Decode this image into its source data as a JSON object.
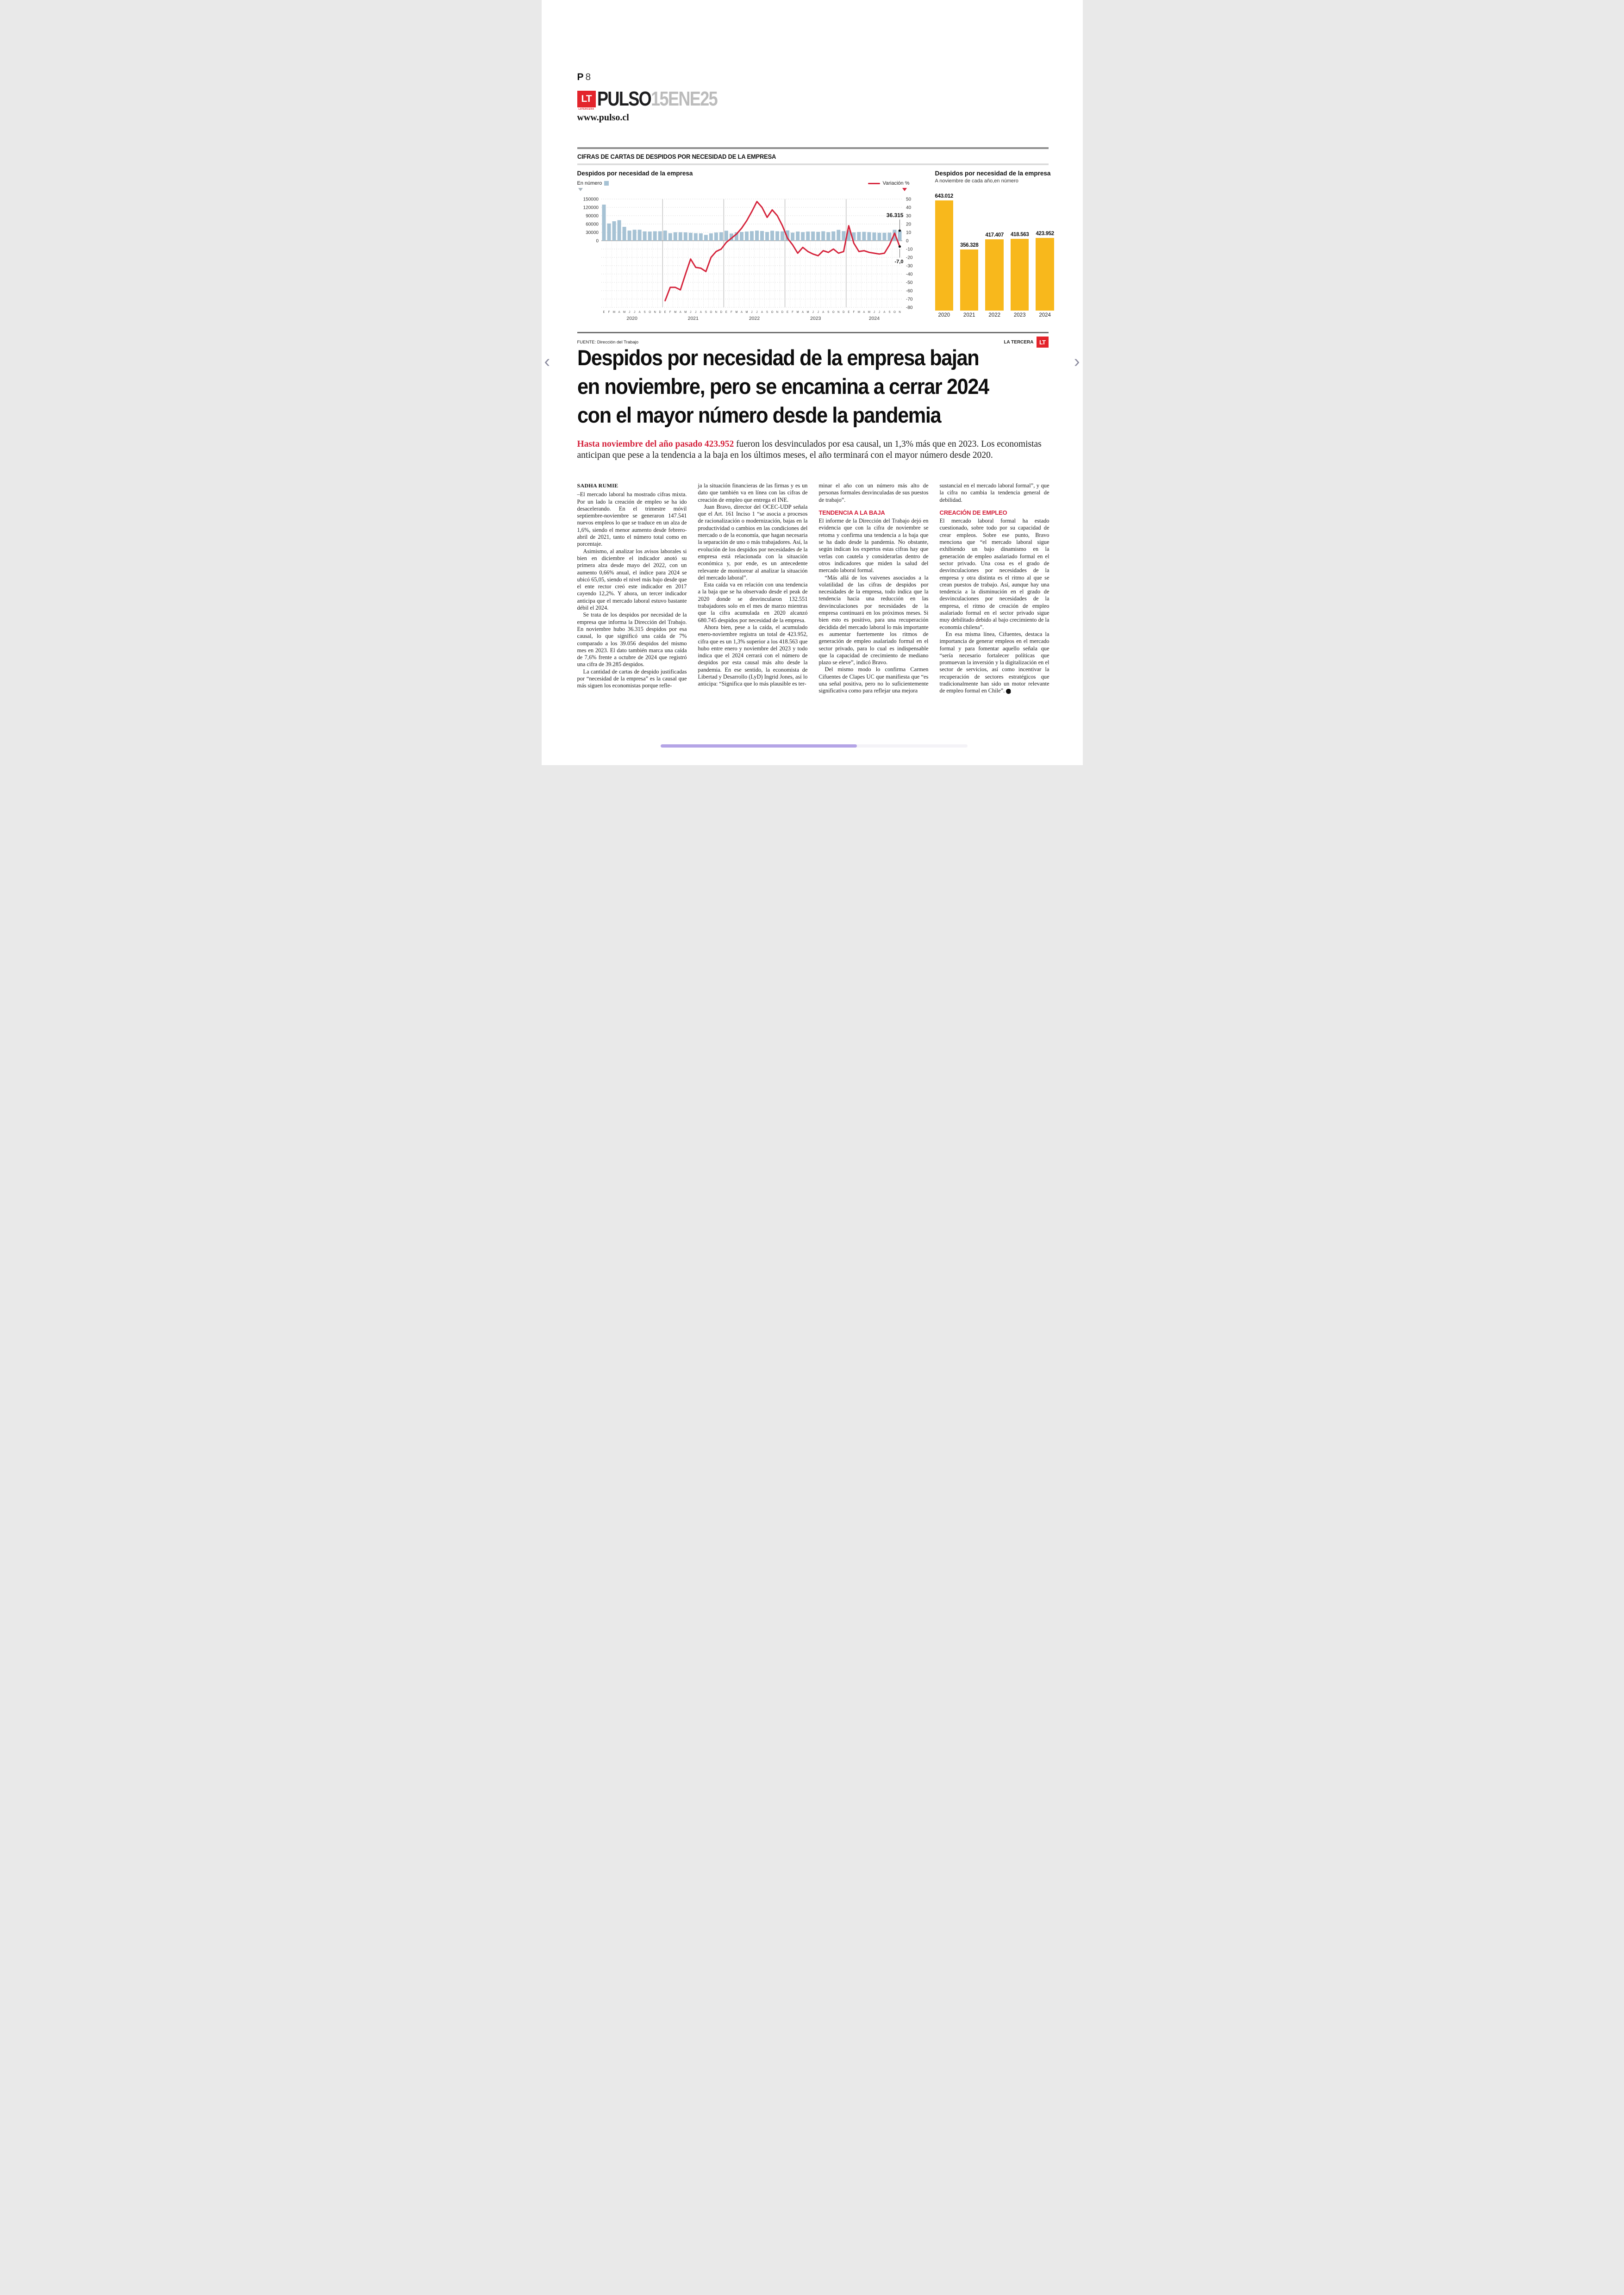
{
  "page": {
    "number_label": "P",
    "number": "8"
  },
  "brand": {
    "lt": "LT",
    "lt_sub": "LATERCERA",
    "name": "PULSO",
    "date": "15ENE25",
    "url": "www.pulso.cl"
  },
  "nav": {
    "prev": "‹",
    "next": "›"
  },
  "chart_section": {
    "kicker": "CIFRAS DE CARTAS DE DESPIDOS POR NECESIDAD DE LA EMPRESA",
    "source": "FUENTE: Dirección del Trabajo",
    "credit": "LA TERCERA",
    "credit_logo": "LT"
  },
  "colors": {
    "bar_blue": "#a6c2d4",
    "line_red": "#d5243c",
    "bar_yellow": "#f8b81c",
    "accent_red": "#d4213a",
    "logo_red": "#e3242b"
  },
  "chart_data": [
    {
      "type": "bar+line",
      "title": "Despidos por necesidad de la empresa",
      "legend_bars": "En número",
      "legend_line": "Variación %",
      "ylabel_left_ticks": [
        150000,
        120000,
        90000,
        60000,
        30000,
        0
      ],
      "ylabel_right_ticks": [
        50,
        40,
        30,
        20,
        10,
        0,
        -10,
        -20,
        -30,
        -40,
        -50,
        -60,
        -70,
        -80
      ],
      "month_letters": [
        "E",
        "F",
        "M",
        "A",
        "M",
        "J",
        "J",
        "A",
        "S",
        "O",
        "N",
        "D"
      ],
      "years": [
        {
          "label": "2020",
          "months": 12
        },
        {
          "label": "2021",
          "months": 12
        },
        {
          "label": "2022",
          "months": 12
        },
        {
          "label": "2023",
          "months": 12
        },
        {
          "label": "2024",
          "months": 11
        }
      ],
      "bars_despidos": [
        130000,
        62000,
        70000,
        74000,
        50000,
        36500,
        39500,
        39500,
        33500,
        33000,
        34000,
        34000,
        36500,
        27000,
        30500,
        30500,
        30000,
        28500,
        27000,
        26500,
        21000,
        26500,
        29500,
        30500,
        36000,
        26000,
        30500,
        31500,
        33000,
        34500,
        36500,
        35000,
        31500,
        36000,
        34000,
        33500,
        37000,
        29000,
        33000,
        31000,
        33000,
        33000,
        32000,
        34000,
        31000,
        33500,
        39056,
        34500,
        37500,
        30000,
        31500,
        32000,
        31000,
        29500,
        28500,
        28500,
        29000,
        39285,
        36315
      ],
      "variation_start_index": 12,
      "variation_pct": [
        -72,
        -56,
        -56,
        -59,
        -40,
        -22,
        -32,
        -33,
        -37,
        -20,
        -13,
        -10,
        -2,
        3,
        8,
        15,
        24,
        35,
        47,
        40,
        28,
        37,
        30,
        18,
        3,
        -5,
        -15,
        -8,
        -13,
        -16,
        -18,
        -12,
        -14,
        -10,
        -15,
        -13,
        18,
        -3,
        -13,
        -12,
        -14,
        -15,
        -16,
        -15,
        -5,
        9,
        -7
      ],
      "annotation_last_bar": "36.315",
      "annotation_last_variation": "-7,0"
    },
    {
      "type": "bar",
      "title": "Despidos por necesidad de la empresa",
      "subtitle": "A noviembre de cada año,en número",
      "categories": [
        "2020",
        "2021",
        "2022",
        "2023",
        "2024"
      ],
      "values": [
        643012,
        356328,
        417407,
        418563,
        423952
      ],
      "labels": [
        "643.012",
        "356.328",
        "417.407",
        "418.563",
        "423.952"
      ]
    }
  ],
  "article": {
    "headline_lines": [
      "Despidos por necesidad de la empresa bajan",
      "en noviembre, pero se encamina a cerrar 2024",
      "con el mayor número desde la pandemia"
    ],
    "lead_highlight": "Hasta noviembre del año pasado 423.952",
    "lead_rest": "fueron los desvinculados por esa causal, un 1,3% más que en 2023. Los economistas anticipan que pese a la tendencia a la baja en los últimos meses, el año terminará con el mayor número desde 2020.",
    "columns": [
      [
        {
          "t": "byline",
          "text": "SADHA RUMIE"
        },
        {
          "t": "p",
          "ind": false,
          "text": "–El mercado laboral ha mostrado cifras mixta. Por un lado la creación de empleo se ha ido desacelerando. En el trimestre móvil septiembre-noviembre se generaron 147.541 nuevos empleos lo que se traduce en un alza de 1,6%, siendo el menor aumento desde febrero-abril de 2021, tanto el número total como en porcentaje."
        },
        {
          "t": "p",
          "ind": true,
          "text": "Asimismo, al analizar los avisos laborales si bien en diciembre el indicador anotó su primera alza desde mayo del 2022, con un aumento 0,66% anual, el índice para 2024 se ubicó 65,05, siendo el nivel más bajo desde que el ente rector creó este indicador en 2017 cayendo 12,2%. Y ahora, un tercer indicador anticipa que el mercado laboral estuvo bastante débil el 2024."
        },
        {
          "t": "p",
          "ind": true,
          "text": "Se trata de los despidos por necesidad de la empresa que informa la Dirección del Trabajo. En noviembre hubo 36.315 despidos por esa causal, lo que significó una caída de 7% comparado a los 39.056 despidos del mismo mes en 2023. El dato también marca una caída de 7,6% frente a octubre de 2024 que registró una cifra de 39.285 despidos."
        },
        {
          "t": "p",
          "ind": true,
          "text": "La cantidad de cartas de despido justificadas por “necesidad de la empresa” es la causal que más siguen los economistas porque refle-"
        }
      ],
      [
        {
          "t": "p",
          "ind": false,
          "text": "ja la situación financieras de las firmas y es un dato que también va en línea con las cifras de creación de empleo que entrega el INE."
        },
        {
          "t": "p",
          "ind": true,
          "text": "Juan Bravo, director del OCEC-UDP señala que el Art. 161 Inciso 1 “se asocia a procesos de racionalización o modernización, bajas en la productividad o cambios en las condiciones del mercado o de la economía, que hagan necesaria la separación de uno o más trabajadores. Así, la evolución de los despidos por necesidades de la empresa está relacionada con la situación económica y, por ende, es un antecedente relevante de monitorear al analizar la situación del mercado laboral”."
        },
        {
          "t": "p",
          "ind": true,
          "text": "Esta caída va en relación con una tendencia a la baja que se ha observado desde el peak de 2020 donde se desvincularon 132.551 trabajadores solo en el mes de marzo mientras que la cifra acumulada en 2020 alcanzó 680.745 despidos por necesidad de la empresa."
        },
        {
          "t": "p",
          "ind": true,
          "text": "Ahora bien, pese a la caída, el acumulado enero-noviembre registra un total de 423.952, cifra que es un 1,3% superior a los 418.563 que hubo entre enero y noviembre del 2023 y todo indica que el 2024 cerrará con el número de despidos por esta causal más alto desde la pandemia. En ese sentido, la economista de Libertad y Desarrollo (LyD) Ingrid Jones, así lo anticipa: “Significa que lo más plausible es ter-"
        }
      ],
      [
        {
          "t": "p",
          "ind": false,
          "text": "minar el año con un número más alto de personas formales desvinculadas de sus puestos de trabajo”."
        },
        {
          "t": "sub",
          "text": "TENDENCIA A LA BAJA"
        },
        {
          "t": "p",
          "ind": false,
          "text": "El informe de la Dirección del Trabajo dejó en evidencia que con la cifra de noviembre se retoma y confirma una tendencia a la baja que se ha dado desde la pandemia. No obstante, según indican los expertos estas cifras hay que verlas con cautela y considerarlas dentro de otros indicadores que miden la salud del mercado laboral formal."
        },
        {
          "t": "p",
          "ind": true,
          "text": "“Más allá de los vaivenes asociados a la volatilidad de las cifras de despidos por necesidades de la empresa, todo indica que la tendencia hacia una reducción en las desvinculaciones por necesidades de la empresa continuará en los próximos meses. Si bien esto es positivo, para una recuperación decidida del mercado laboral lo más importante es aumentar fuertemente los ritmos de generación de empleo asalariado formal en el sector privado, para lo cual es indispensable que la capacidad de crecimiento de mediano plazo se eleve”, indicó Bravo."
        },
        {
          "t": "p",
          "ind": true,
          "text": "Del mismo modo lo confirma Carmen Cifuentes de Clapes UC que manifiesta que “es una señal positiva, pero no lo suficientemente significativa como para reflejar una mejora"
        }
      ],
      [
        {
          "t": "p",
          "ind": false,
          "text": "sustancial en el mercado laboral formal”, y que la cifra no cambia la tendencia general de debilidad."
        },
        {
          "t": "sub",
          "text": "CREACIÓN DE EMPLEO"
        },
        {
          "t": "p",
          "ind": false,
          "text": "El mercado laboral formal ha estado cuestionado, sobre todo por su capacidad de crear empleos. Sobre ese punto, Bravo menciona que “el mercado laboral sigue exhibiendo un bajo dinamismo en la generación de empleo asalariado formal en el sector privado. Una cosa es el grado de desvinculaciones por necesidades de la empresa y otra distinta es el ritmo al que se crean puestos de trabajo. Así, aunque hay una tendencia a la disminución en el grado de desvinculaciones por necesidades de la empresa, el ritmo de creación de empleo asalariado formal en el sector privado sigue muy debilitado debido al bajo crecimiento de la economía chilena”."
        },
        {
          "t": "p",
          "ind": true,
          "end": true,
          "text": "En esa misma línea, Cifuentes, destaca la importancia de generar empleos en el mercado formal y para fomentar aquello señala que “sería necesario fortalecer políticas que promuevan la inversión y la digitalización en el sector de servicios, así como incentivar la recuperación de sectores estratégicos que tradicionalmente han sido un motor relevante de empleo formal en Chile”."
        }
      ]
    ]
  }
}
